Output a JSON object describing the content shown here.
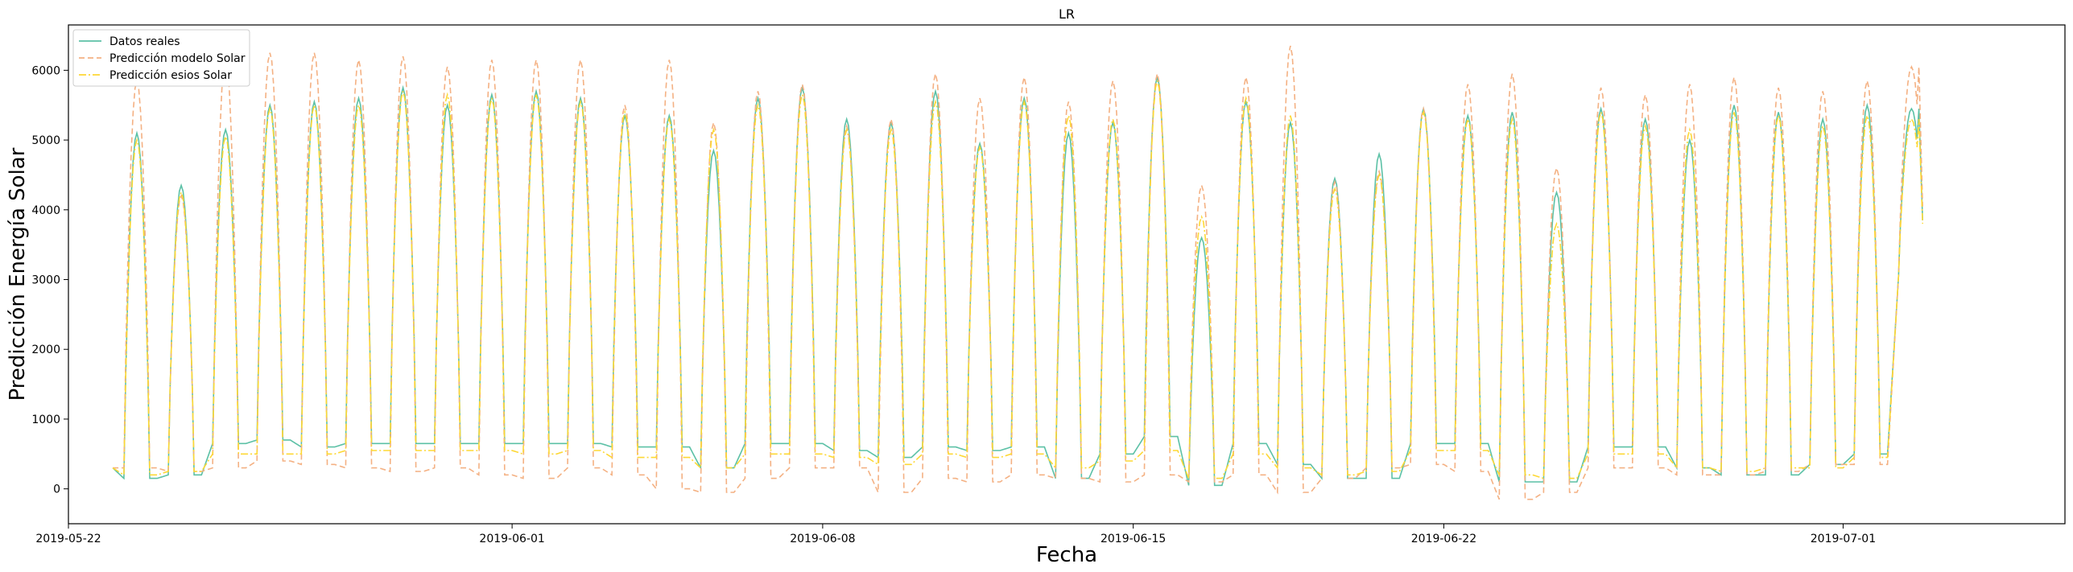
{
  "chart_data": {
    "type": "line",
    "title": "LR",
    "xlabel": "Fecha",
    "ylabel": "Predicción Energía Solar",
    "x_start": "2019-05-23",
    "x_end": "2019-07-03",
    "xlim": [
      "2019-05-22",
      "2019-07-06"
    ],
    "ylim": [
      -500,
      6650
    ],
    "x_ticks": [
      "2019-05-22",
      "2019-06-01",
      "2019-06-08",
      "2019-06-15",
      "2019-06-22",
      "2019-07-01"
    ],
    "y_ticks": [
      0,
      1000,
      2000,
      3000,
      4000,
      5000,
      6000
    ],
    "grid": false,
    "legend_position": "top-left",
    "series": [
      {
        "name": "Datos reales",
        "color": "#5cc1a6",
        "dash": "solid",
        "daily_peaks": [
          5100,
          4350,
          5150,
          5500,
          5550,
          5600,
          5750,
          5500,
          5650,
          5700,
          5600,
          5350,
          5350,
          4850,
          5600,
          5750,
          5300,
          5250,
          5700,
          4950,
          5600,
          5100,
          5250,
          5900,
          3600,
          5550,
          5250,
          4450,
          4800,
          5450,
          5350,
          5400,
          4250,
          5450,
          5300,
          5000,
          5500,
          5400,
          5300,
          5500,
          5450
        ],
        "daily_troughs": [
          150,
          200,
          650,
          700,
          600,
          650,
          650,
          650,
          650,
          650,
          650,
          600,
          600,
          300,
          650,
          650,
          550,
          450,
          600,
          550,
          600,
          150,
          500,
          750,
          50,
          650,
          350,
          150,
          150,
          650,
          650,
          100,
          100,
          600,
          600,
          300,
          200,
          200,
          350,
          500,
          3050
        ]
      },
      {
        "name": "Predicción modelo Solar",
        "color": "#f4b183",
        "dash": "dashed",
        "daily_peaks": [
          5850,
          4200,
          6200,
          6250,
          6250,
          6150,
          6200,
          6050,
          6150,
          6150,
          6150,
          5500,
          6150,
          5250,
          5700,
          5800,
          5200,
          5300,
          5950,
          5600,
          5900,
          5550,
          5850,
          5950,
          4350,
          5900,
          6350,
          4400,
          4550,
          5450,
          5800,
          5950,
          4600,
          5750,
          5650,
          5800,
          5900,
          5750,
          5700,
          5850,
          6050
        ],
        "daily_troughs": [
          300,
          250,
          300,
          400,
          350,
          300,
          250,
          300,
          200,
          150,
          300,
          200,
          0,
          -50,
          150,
          300,
          300,
          -50,
          150,
          100,
          200,
          150,
          100,
          200,
          100,
          200,
          -50,
          150,
          300,
          350,
          250,
          -150,
          -50,
          300,
          300,
          200,
          200,
          250,
          350,
          350,
          3050
        ]
      },
      {
        "name": "Predicción esios Solar",
        "color": "#fdd835",
        "dash": "dashdot",
        "daily_peaks": [
          5000,
          4250,
          5050,
          5450,
          5500,
          5500,
          5700,
          5650,
          5600,
          5650,
          5550,
          5400,
          5300,
          5150,
          5500,
          5650,
          5150,
          5150,
          5550,
          4900,
          5550,
          5350,
          5300,
          5850,
          3900,
          5600,
          5350,
          4300,
          4500,
          5400,
          5300,
          5300,
          3800,
          5400,
          5200,
          5150,
          5400,
          5350,
          5200,
          5350,
          5300
        ],
        "daily_troughs": [
          200,
          250,
          500,
          500,
          500,
          550,
          550,
          550,
          550,
          500,
          550,
          450,
          450,
          300,
          500,
          500,
          450,
          350,
          500,
          450,
          500,
          300,
          400,
          550,
          150,
          500,
          300,
          200,
          250,
          550,
          550,
          200,
          150,
          500,
          500,
          300,
          250,
          300,
          300,
          450,
          3050
        ]
      }
    ]
  }
}
